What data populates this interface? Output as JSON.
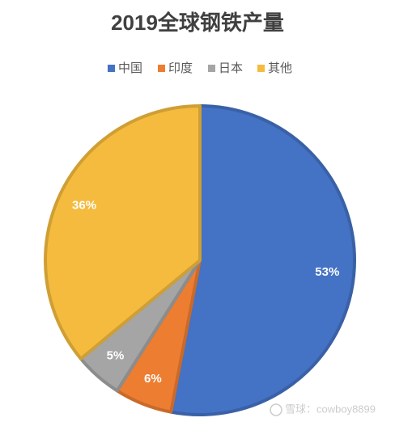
{
  "chart_data": {
    "type": "pie",
    "title": "2019全球钢铁产量",
    "categories": [
      "中国",
      "印度",
      "日本",
      "其他"
    ],
    "values": [
      53,
      6,
      5,
      36
    ],
    "value_labels": [
      "53%",
      "6%",
      "5%",
      "36%"
    ],
    "colors": [
      "#4472c4",
      "#ed7d31",
      "#a5a5a5",
      "#f4bb3e"
    ],
    "legend": "top"
  },
  "watermark": "雪球：cowboy8899"
}
